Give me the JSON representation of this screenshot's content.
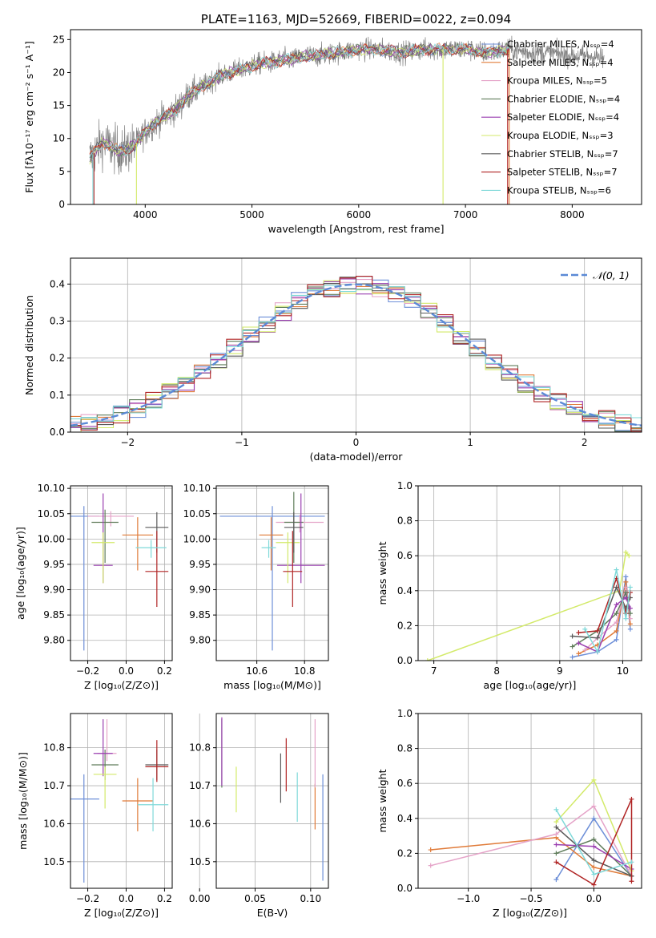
{
  "colors": [
    "#6d8fd8",
    "#e07b39",
    "#e5a3c8",
    "#5f7c5a",
    "#9a3fb0",
    "#d3ea6a",
    "#5a5a5a",
    "#b02424",
    "#7fd9d9"
  ],
  "chart_data": [
    {
      "id": "spectrum",
      "type": "line",
      "title": "PLATE=1163, MJD=52669, FIBERID=0022, z=0.094",
      "xlabel": "wavelength [Angstrom, rest frame]",
      "ylabel": "Flux [fλ10⁻¹⁷ erg cm⁻² s⁻¹ A⁻¹]",
      "xlim": [
        3300,
        8650
      ],
      "ylim": [
        0,
        26.5
      ],
      "xticks": [
        "4000",
        "5000",
        "6000",
        "7000",
        "8000"
      ],
      "yticks": [
        "0",
        "5",
        "10",
        "15",
        "20",
        "25"
      ],
      "grid": false,
      "legend": "upper right",
      "legend_entries": [
        "Chabrier MILES, Nₛₛₚ=4",
        "Salpeter MILES, Nₛₛₚ=4",
        "Kroupa MILES, Nₛₛₚ=5",
        "Chabrier ELODIE, Nₛₛₚ=4",
        "Salpeter ELODIE, Nₛₛₚ=4",
        "Kroupa ELODIE, Nₛₛₚ=3",
        "Chabrier STELIB, Nₛₛₚ=7",
        "Salpeter STELIB, Nₛₛₚ=7",
        "Kroupa STELIB, Nₛₛₚ=6"
      ],
      "data_continuum": {
        "x": [
          3480,
          3600,
          3700,
          3800,
          3900,
          4000,
          4100,
          4200,
          4300,
          4400,
          4500,
          4600,
          4700,
          4800,
          4900,
          5000,
          5100,
          5200,
          5300,
          5400,
          5500,
          5600,
          5800,
          6000,
          6200,
          6400,
          6600,
          6800,
          7000,
          7200,
          7400,
          7600,
          7800,
          8000,
          8200,
          8300
        ],
        "y": [
          7.0,
          9.5,
          8.5,
          8.0,
          9.0,
          11.0,
          12.5,
          13.5,
          14.5,
          16.5,
          17.5,
          18.5,
          19.5,
          20.0,
          20.5,
          21.0,
          21.5,
          21.5,
          22.0,
          22.0,
          22.5,
          22.5,
          23.0,
          23.5,
          23.5,
          23.0,
          23.5,
          23.5,
          23.5,
          23.0,
          23.5,
          23.0,
          23.0,
          22.5,
          22.5,
          22.0
        ]
      }
    },
    {
      "id": "residuals",
      "type": "line",
      "xlabel": "(data-model)/error",
      "ylabel": "Normed distribution",
      "xlim": [
        -2.5,
        2.5
      ],
      "ylim": [
        0,
        0.47
      ],
      "xticks": [
        "−2",
        "−1",
        "0",
        "1",
        "2"
      ],
      "yticks": [
        "0.0",
        "0.1",
        "0.2",
        "0.3",
        "0.4"
      ],
      "grid": true,
      "legend": "upper right",
      "legend_entries": [
        "𝒩(0, 1)"
      ],
      "reference_curve": "normal(0,1)"
    },
    {
      "id": "age_vs_Z",
      "type": "scatter",
      "xlabel": "Z [log₁₀(Z/Z⊙)]",
      "ylabel": "age  [log₁₀(age/yr)]",
      "xlim": [
        -0.29,
        0.24
      ],
      "ylim": [
        9.76,
        10.105
      ],
      "xticks": [
        "−0.2",
        "0.0",
        "0.2"
      ],
      "yticks": [
        "9.80",
        "9.85",
        "9.90",
        "9.95",
        "10.00",
        "10.05",
        "10.10"
      ],
      "grid": true,
      "points": [
        {
          "x": -0.22,
          "y": 10.045,
          "xerr": 0.08,
          "yerr_lo": 0.265,
          "yerr_hi": 0.02
        },
        {
          "x": 0.06,
          "y": 10.008,
          "xerr": 0.08,
          "yerr_lo": 0.07,
          "yerr_hi": 0.035
        },
        {
          "x": -0.08,
          "y": 10.045,
          "xerr": 0.12,
          "yerr_lo": 0.02,
          "yerr_hi": 0.01
        },
        {
          "x": -0.11,
          "y": 10.033,
          "xerr": 0.07,
          "yerr_lo": 0.08,
          "yerr_hi": 0.025
        },
        {
          "x": -0.12,
          "y": 9.948,
          "xerr": 0.05,
          "yerr_lo": 0.035,
          "yerr_hi": 0.142
        },
        {
          "x": -0.12,
          "y": 9.993,
          "xerr": 0.06,
          "yerr_lo": 0.08,
          "yerr_hi": 0.02
        },
        {
          "x": 0.16,
          "y": 10.023,
          "xerr": 0.06,
          "yerr_lo": 0.05,
          "yerr_hi": 0.03
        },
        {
          "x": 0.16,
          "y": 9.936,
          "xerr": 0.06,
          "yerr_lo": 0.07,
          "yerr_hi": 0.08
        },
        {
          "x": 0.13,
          "y": 9.983,
          "xerr": 0.08,
          "yerr_lo": 0.02,
          "yerr_hi": 0.015
        }
      ]
    },
    {
      "id": "age_vs_mass",
      "type": "scatter",
      "xlabel": "mass [log₁₀(M/M⊙)]",
      "ylabel": "",
      "xlim": [
        10.43,
        10.9
      ],
      "ylim": [
        9.76,
        10.105
      ],
      "xticks": [
        "10.6",
        "10.8"
      ],
      "yticks": [
        "9.80",
        "9.85",
        "9.90",
        "9.95",
        "10.00",
        "10.05",
        "10.10"
      ],
      "grid": true,
      "points": [
        {
          "x": 10.665,
          "y": 10.045,
          "xerr": 0.22,
          "yerr_lo": 0.265,
          "yerr_hi": 0.02
        },
        {
          "x": 10.66,
          "y": 10.008,
          "xerr": 0.05,
          "yerr_lo": 0.07,
          "yerr_hi": 0.035
        },
        {
          "x": 10.78,
          "y": 10.033,
          "xerr": 0.1,
          "yerr_lo": 0.02,
          "yerr_hi": 0.015
        },
        {
          "x": 10.755,
          "y": 10.033,
          "xerr": 0.04,
          "yerr_lo": 0.08,
          "yerr_hi": 0.06
        },
        {
          "x": 10.785,
          "y": 9.948,
          "xerr": 0.1,
          "yerr_lo": 0.035,
          "yerr_hi": 0.142
        },
        {
          "x": 10.73,
          "y": 9.993,
          "xerr": 0.05,
          "yerr_lo": 0.08,
          "yerr_hi": 0.02
        },
        {
          "x": 10.755,
          "y": 10.023,
          "xerr": 0.04,
          "yerr_lo": 0.05,
          "yerr_hi": 0.03
        },
        {
          "x": 10.75,
          "y": 9.936,
          "xerr": 0.04,
          "yerr_lo": 0.07,
          "yerr_hi": 0.08
        },
        {
          "x": 10.65,
          "y": 9.983,
          "xerr": 0.03,
          "yerr_lo": 0.02,
          "yerr_hi": 0.015
        }
      ]
    },
    {
      "id": "weight_vs_age",
      "type": "line",
      "xlabel": "age  [log₁₀(age/yr)]",
      "ylabel": "mass weight",
      "xlim": [
        6.75,
        10.3
      ],
      "ylim": [
        0,
        1.0
      ],
      "xticks": [
        "7",
        "8",
        "9",
        "10"
      ],
      "yticks": [
        "0.0",
        "0.2",
        "0.4",
        "0.6",
        "0.8",
        "1.0"
      ],
      "grid": true
    },
    {
      "id": "mass_vs_Z",
      "type": "scatter",
      "xlabel": "Z [log₁₀(Z/Z⊙)]",
      "ylabel": "mass [log₁₀(M/M⊙)]",
      "xlim": [
        -0.29,
        0.24
      ],
      "ylim": [
        10.43,
        10.89
      ],
      "xticks": [
        "−0.2",
        "0.0",
        "0.2"
      ],
      "yticks": [
        "10.5",
        "10.6",
        "10.7",
        "10.8"
      ],
      "grid": true,
      "points": [
        {
          "x": -0.22,
          "y": 10.665,
          "xerr": 0.08,
          "yerr_lo": 0.22,
          "yerr_hi": 0.065
        },
        {
          "x": 0.06,
          "y": 10.66,
          "xerr": 0.08,
          "yerr_lo": 0.08,
          "yerr_hi": 0.06
        },
        {
          "x": -0.1,
          "y": 10.785,
          "xerr": 0.05,
          "yerr_lo": 0.02,
          "yerr_hi": 0.09
        },
        {
          "x": -0.11,
          "y": 10.755,
          "xerr": 0.07,
          "yerr_lo": 0.04,
          "yerr_hi": 0.04
        },
        {
          "x": -0.12,
          "y": 10.785,
          "xerr": 0.05,
          "yerr_lo": 0.06,
          "yerr_hi": 0.09
        },
        {
          "x": -0.11,
          "y": 10.73,
          "xerr": 0.06,
          "yerr_lo": 0.09,
          "yerr_hi": 0.02
        },
        {
          "x": 0.16,
          "y": 10.755,
          "xerr": 0.06,
          "yerr_lo": 0.04,
          "yerr_hi": 0.04
        },
        {
          "x": 0.16,
          "y": 10.75,
          "xerr": 0.06,
          "yerr_lo": 0.04,
          "yerr_hi": 0.07
        },
        {
          "x": 0.14,
          "y": 10.65,
          "xerr": 0.08,
          "yerr_lo": 0.07,
          "yerr_hi": 0.07
        }
      ]
    },
    {
      "id": "mass_vs_ebv",
      "type": "scatter",
      "xlabel": "E(B-V)",
      "ylabel": "",
      "xlim": [
        0.015,
        0.116
      ],
      "ylim": [
        10.43,
        10.89
      ],
      "xticks": [
        "0.00",
        "0.05",
        "0.10"
      ],
      "yticks": [
        "10.5",
        "10.6",
        "10.7",
        "10.8"
      ],
      "grid": true,
      "points": [
        {
          "x": 0.111,
          "y": 10.59,
          "yerr_lo": 0.14,
          "yerr_hi": 0.14
        },
        {
          "x": 0.104,
          "y": 10.645,
          "yerr_lo": 0.06,
          "yerr_hi": 0.06
        },
        {
          "x": 0.104,
          "y": 10.785,
          "yerr_lo": 0.09,
          "yerr_hi": 0.09
        },
        {
          "x": 0.02,
          "y": 10.785,
          "yerr_lo": 0.09,
          "yerr_hi": 0.09
        },
        {
          "x": 0.02,
          "y": 10.79,
          "yerr_lo": 0.09,
          "yerr_hi": 0.09
        },
        {
          "x": 0.033,
          "y": 10.69,
          "yerr_lo": 0.06,
          "yerr_hi": 0.06
        },
        {
          "x": 0.073,
          "y": 10.72,
          "yerr_lo": 0.065,
          "yerr_hi": 0.065
        },
        {
          "x": 0.078,
          "y": 10.755,
          "yerr_lo": 0.07,
          "yerr_hi": 0.07
        },
        {
          "x": 0.088,
          "y": 10.67,
          "yerr_lo": 0.065,
          "yerr_hi": 0.065
        }
      ]
    },
    {
      "id": "weight_vs_Z",
      "type": "line",
      "xlabel": "Z [log₁₀(Z/Z⊙)]",
      "ylabel": "mass weight",
      "xlim": [
        -1.4,
        0.38
      ],
      "ylim": [
        0,
        1.0
      ],
      "xticks": [
        "−1.0",
        "−0.5",
        "0.0"
      ],
      "yticks": [
        "0.0",
        "0.2",
        "0.4",
        "0.6",
        "0.8",
        "1.0"
      ],
      "grid": true
    }
  ]
}
